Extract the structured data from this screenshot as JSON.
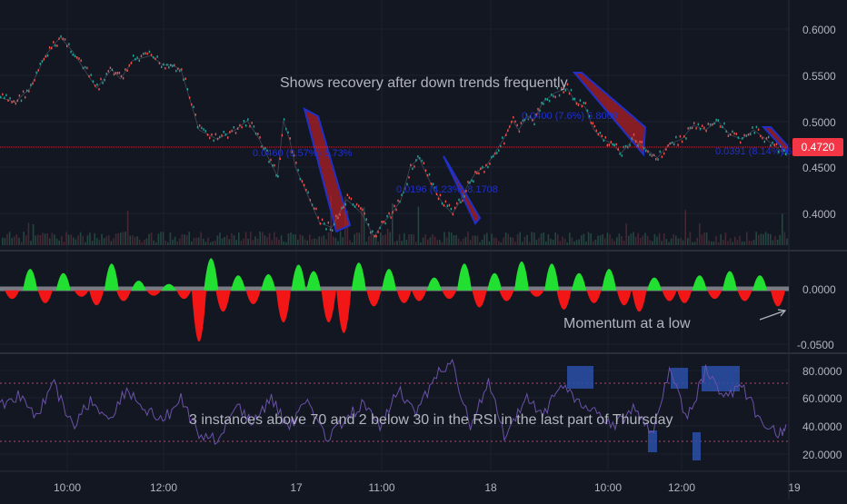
{
  "chart_data": [
    {
      "type": "line",
      "panel": "price",
      "ylim": [
        0.37,
        0.64
      ],
      "y_ticks": [
        "0.6000",
        "0.5500",
        "0.5000",
        "0.4500",
        "0.4000"
      ],
      "current_price_label": "0.4720",
      "current_price": 0.472,
      "x": [
        0,
        0.25,
        0.5,
        0.75,
        1,
        1.2,
        1.4,
        1.6,
        1.85,
        2,
        2.2,
        2.5,
        2.7,
        2.85,
        3,
        3.3,
        3.6,
        3.9,
        4.1,
        4.3,
        4.45,
        4.6,
        4.7,
        4.8,
        4.9,
        5.1,
        5.3,
        5.5,
        5.75,
        6,
        6.2,
        6.35,
        6.5,
        6.65,
        6.8,
        6.95,
        7.05,
        7.2,
        7.35,
        7.5,
        7.6,
        7.75,
        7.9,
        8.05,
        8.2,
        8.35,
        8.5,
        8.6,
        8.75,
        8.85,
        9.0,
        9.2,
        9.4,
        9.55,
        9.7,
        9.85,
        10.0,
        10.15,
        10.3,
        10.5,
        10.7,
        10.9,
        11.1,
        11.3,
        11.5,
        11.7,
        11.9,
        12.1,
        12.3,
        12.5,
        12.7,
        12.9,
        13.05
      ],
      "values": [
        0.535,
        0.53,
        0.545,
        0.58,
        0.6,
        0.585,
        0.565,
        0.545,
        0.565,
        0.555,
        0.575,
        0.58,
        0.57,
        0.57,
        0.565,
        0.5,
        0.49,
        0.5,
        0.51,
        0.49,
        0.47,
        0.45,
        0.51,
        0.49,
        0.46,
        0.43,
        0.4,
        0.395,
        0.425,
        0.41,
        0.385,
        0.4,
        0.41,
        0.425,
        0.46,
        0.47,
        0.455,
        0.435,
        0.42,
        0.41,
        0.42,
        0.44,
        0.455,
        0.46,
        0.475,
        0.49,
        0.51,
        0.5,
        0.515,
        0.51,
        0.53,
        0.54,
        0.545,
        0.53,
        0.525,
        0.5,
        0.49,
        0.485,
        0.475,
        0.49,
        0.48,
        0.47,
        0.485,
        0.49,
        0.505,
        0.5,
        0.51,
        0.495,
        0.49,
        0.5,
        0.49,
        0.48,
        0.472
      ]
    },
    {
      "type": "bar",
      "panel": "momentum",
      "ylim": [
        -0.058,
        0.032
      ],
      "y_ticks": [
        "0.0000",
        "-0.0500"
      ],
      "colors": {
        "positive": "#22e032",
        "negative": "#f21616"
      },
      "x": [
        0.2,
        0.5,
        0.75,
        1.05,
        1.35,
        1.6,
        1.85,
        2.05,
        2.3,
        2.55,
        2.8,
        3.05,
        3.3,
        3.5,
        3.7,
        3.95,
        4.2,
        4.45,
        4.7,
        4.95,
        5.2,
        5.45,
        5.7,
        5.95,
        6.2,
        6.45,
        6.7,
        6.95,
        7.2,
        7.45,
        7.7,
        7.95,
        8.2,
        8.4,
        8.65,
        8.9,
        9.15,
        9.35,
        9.6,
        9.85,
        10.1,
        10.35,
        10.6,
        10.85,
        11.1,
        11.35,
        11.6,
        11.85,
        12.1,
        12.35,
        12.6,
        12.9
      ],
      "values": [
        -0.008,
        0.02,
        -0.012,
        0.016,
        -0.006,
        -0.014,
        0.025,
        -0.01,
        0.009,
        -0.005,
        0.006,
        -0.008,
        -0.048,
        0.03,
        -0.02,
        0.014,
        -0.013,
        0.015,
        -0.03,
        0.024,
        0.018,
        -0.03,
        -0.04,
        0.026,
        -0.015,
        0.02,
        -0.012,
        -0.01,
        0.012,
        -0.008,
        0.025,
        -0.016,
        0.016,
        -0.01,
        0.027,
        -0.006,
        0.025,
        -0.018,
        0.016,
        -0.012,
        0.02,
        -0.014,
        -0.02,
        0.012,
        -0.01,
        -0.012,
        0.014,
        -0.008,
        0.018,
        -0.01,
        0.014,
        -0.015
      ]
    },
    {
      "type": "line",
      "panel": "rsi",
      "ylim": [
        10,
        88
      ],
      "y_ticks": [
        "80.0000",
        "60.0000",
        "40.0000",
        "20.0000"
      ],
      "levels": [
        70,
        30
      ],
      "x": [
        0,
        0.3,
        0.6,
        0.9,
        1.2,
        1.5,
        1.8,
        2.1,
        2.4,
        2.7,
        3.0,
        3.3,
        3.6,
        3.9,
        4.2,
        4.5,
        4.8,
        5.1,
        5.4,
        5.7,
        6.0,
        6.3,
        6.6,
        6.9,
        7.2,
        7.5,
        7.8,
        8.1,
        8.4,
        8.7,
        9.0,
        9.3,
        9.6,
        9.9,
        10.2,
        10.5,
        10.8,
        11.1,
        11.4,
        11.7,
        12.0,
        12.3,
        12.6,
        12.9,
        13.05
      ],
      "values": [
        55,
        62,
        48,
        70,
        40,
        58,
        45,
        66,
        52,
        44,
        60,
        35,
        30,
        55,
        42,
        60,
        38,
        62,
        30,
        45,
        55,
        40,
        68,
        48,
        75,
        85,
        40,
        70,
        30,
        62,
        48,
        72,
        58,
        50,
        40,
        55,
        35,
        78,
        45,
        80,
        60,
        70,
        45,
        35,
        38
      ]
    }
  ],
  "price_axis_labels": [
    "0.6000",
    "0.5500",
    "0.5000",
    "0.4500",
    "0.4000"
  ],
  "momentum_axis_labels": [
    "0.0000",
    "-0.0500"
  ],
  "rsi_axis_labels": [
    "80.0000",
    "60.0000",
    "40.0000",
    "20.0000"
  ],
  "time_axis_labels": [
    "10:00",
    "12:00",
    "17",
    "11:00",
    "18",
    "10:00",
    "12:00",
    "19"
  ],
  "annotations": {
    "recovery": "Shows recovery after down trends frequently",
    "momentum": "Momentum at a low",
    "rsi": "3 instances above 70 and 2 below 30 in the RSI in the last part of Thursday"
  },
  "channel_labels": [
    "0.0460 (9.57%) 6.73%",
    "0.0196 (4.23%) 8.1708",
    "0.0400 (7.6%) 5.8000",
    "0.0391 (8.14%) 6"
  ],
  "colors": {
    "background": "#131722",
    "price_label_bg": "#f23645",
    "channel_fill": "#c41f27",
    "channel_border": "#2130c7",
    "rsi_line": "#6a52a8",
    "rsi_highlight": "#2b4fa8",
    "annotation_text": "#b2b5be"
  }
}
